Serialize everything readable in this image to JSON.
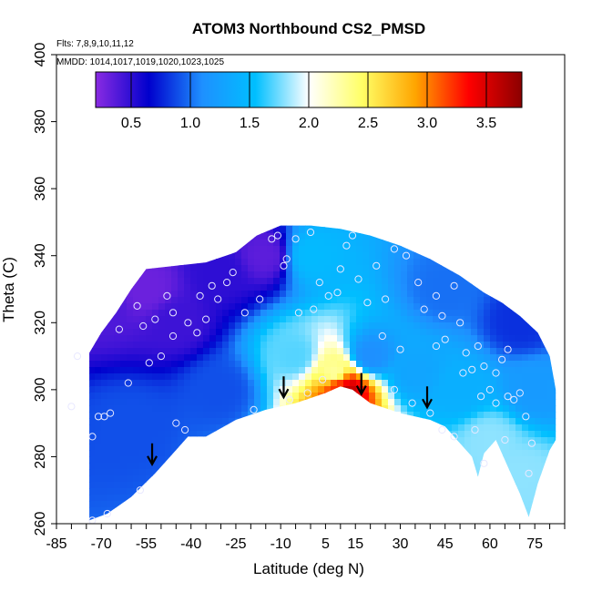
{
  "chart_data": {
    "type": "heatmap",
    "title": "ATOM3 Northbound CS2_PMSD",
    "annotations": {
      "flights": "Flts: 7,8,9,10,11,12",
      "dates": "MMDD: 1014,1017,1019,1020,1023,1025"
    },
    "xlabel": "Latitude (deg N)",
    "ylabel": "Theta (C)",
    "xlim": [
      -85,
      85
    ],
    "ylim": [
      260,
      400
    ],
    "xticks": [
      -85,
      -70,
      -55,
      -40,
      -25,
      -10,
      5,
      15,
      30,
      45,
      60,
      75
    ],
    "xtick_labels": [
      "-85",
      "-70",
      "-55",
      "-40",
      "-25",
      "-10",
      "5",
      "15",
      "30",
      "45",
      "60",
      "75"
    ],
    "yticks": [
      260,
      280,
      300,
      320,
      340,
      360,
      380,
      400
    ],
    "ytick_labels": [
      "260",
      "280",
      "300",
      "320",
      "340",
      "360",
      "380",
      "400"
    ],
    "colorbar": {
      "range": [
        0.2,
        3.8
      ],
      "ticks": [
        0.5,
        1.0,
        1.5,
        2.0,
        2.5,
        3.0,
        3.5
      ],
      "tick_labels": [
        "0.5",
        "1.0",
        "1.5",
        "2.0",
        "2.5",
        "3.0",
        "3.5"
      ],
      "colors": [
        "#8a2be2",
        "#0000cd",
        "#1e90ff",
        "#00bfff",
        "#ffffff",
        "#ffff66",
        "#ffa500",
        "#ff0000",
        "#8b0000"
      ]
    },
    "domain_top": [
      [
        -74,
        311
      ],
      [
        -70,
        317
      ],
      [
        -65,
        323
      ],
      [
        -60,
        330
      ],
      [
        -55,
        336
      ],
      [
        -45,
        337
      ],
      [
        -35,
        338
      ],
      [
        -25,
        341
      ],
      [
        -18,
        346
      ],
      [
        -10,
        349
      ],
      [
        0,
        349
      ],
      [
        10,
        348
      ],
      [
        20,
        346
      ],
      [
        30,
        343
      ],
      [
        40,
        339
      ],
      [
        50,
        334
      ],
      [
        58,
        329
      ],
      [
        64,
        326
      ],
      [
        70,
        322
      ],
      [
        76,
        317
      ],
      [
        80,
        310
      ],
      [
        82,
        300
      ],
      [
        82,
        285
      ]
    ],
    "domain_bottom": [
      [
        -74,
        261
      ],
      [
        -68,
        263
      ],
      [
        -60,
        268
      ],
      [
        -52,
        275
      ],
      [
        -45,
        282
      ],
      [
        -41,
        286
      ],
      [
        -35,
        286
      ],
      [
        -25,
        291
      ],
      [
        -15,
        294
      ],
      [
        -5,
        296
      ],
      [
        5,
        299
      ],
      [
        10,
        301
      ],
      [
        14,
        300
      ],
      [
        20,
        296
      ],
      [
        30,
        293
      ],
      [
        40,
        291
      ],
      [
        45,
        289
      ],
      [
        50,
        284
      ],
      [
        54,
        280
      ],
      [
        56,
        274
      ],
      [
        58,
        281
      ],
      [
        62,
        285
      ],
      [
        66,
        277
      ],
      [
        70,
        269
      ],
      [
        73,
        262
      ],
      [
        76,
        272
      ],
      [
        80,
        282
      ],
      [
        82,
        285
      ]
    ],
    "field_peaks": [
      {
        "lat": -70,
        "theta": 325,
        "value": 0.4
      },
      {
        "lat": -55,
        "theta": 330,
        "value": 0.3
      },
      {
        "lat": -45,
        "theta": 320,
        "value": 0.45
      },
      {
        "lat": -30,
        "theta": 335,
        "value": 0.5
      },
      {
        "lat": -15,
        "theta": 340,
        "value": 0.35
      },
      {
        "lat": -60,
        "theta": 290,
        "value": 0.9
      },
      {
        "lat": -30,
        "theta": 300,
        "value": 0.9
      },
      {
        "lat": -5,
        "theta": 310,
        "value": 1.7
      },
      {
        "lat": 0,
        "theta": 340,
        "value": 1.5
      },
      {
        "lat": 8,
        "theta": 305,
        "value": 2.3
      },
      {
        "lat": 10,
        "theta": 301,
        "value": 3.2
      },
      {
        "lat": 12,
        "theta": 300,
        "value": 3.6
      },
      {
        "lat": 20,
        "theta": 310,
        "value": 1.1
      },
      {
        "lat": 35,
        "theta": 305,
        "value": 1.3
      },
      {
        "lat": 50,
        "theta": 300,
        "value": 1.4
      },
      {
        "lat": 60,
        "theta": 285,
        "value": 1.8
      },
      {
        "lat": 70,
        "theta": 275,
        "value": 1.8
      },
      {
        "lat": 75,
        "theta": 300,
        "value": 1.2
      },
      {
        "lat": 70,
        "theta": 320,
        "value": 0.8
      },
      {
        "lat": 45,
        "theta": 330,
        "value": 1.0
      }
    ],
    "sample_points": [
      [
        -73,
        261
      ],
      [
        -68,
        263
      ],
      [
        -57,
        270
      ],
      [
        -71,
        292
      ],
      [
        -69,
        292
      ],
      [
        -67,
        293
      ],
      [
        -73,
        286
      ],
      [
        -80,
        295
      ],
      [
        -61,
        302
      ],
      [
        -54,
        308
      ],
      [
        -50,
        310
      ],
      [
        -46,
        316
      ],
      [
        -41,
        320
      ],
      [
        -38,
        317
      ],
      [
        -35,
        321
      ],
      [
        -31,
        327
      ],
      [
        -28,
        332
      ],
      [
        -26,
        335
      ],
      [
        -22,
        323
      ],
      [
        -17,
        327
      ],
      [
        -13,
        345
      ],
      [
        -11,
        346
      ],
      [
        -9,
        337
      ],
      [
        -8,
        339
      ],
      [
        -5,
        345
      ],
      [
        0,
        347
      ],
      [
        3,
        332
      ],
      [
        6,
        328
      ],
      [
        9,
        329
      ],
      [
        10,
        336
      ],
      [
        12,
        343
      ],
      [
        14,
        346
      ],
      [
        16,
        333
      ],
      [
        19,
        326
      ],
      [
        22,
        337
      ],
      [
        25,
        327
      ],
      [
        28,
        342
      ],
      [
        32,
        340
      ],
      [
        36,
        332
      ],
      [
        38,
        324
      ],
      [
        42,
        328
      ],
      [
        44,
        322
      ],
      [
        48,
        331
      ],
      [
        50,
        320
      ],
      [
        52,
        311
      ],
      [
        54,
        306
      ],
      [
        56,
        313
      ],
      [
        58,
        307
      ],
      [
        60,
        300
      ],
      [
        62,
        305
      ],
      [
        64,
        309
      ],
      [
        66,
        312
      ],
      [
        68,
        297
      ],
      [
        70,
        299
      ],
      [
        72,
        292
      ],
      [
        74,
        284
      ],
      [
        73,
        275
      ],
      [
        65,
        285
      ],
      [
        58,
        278
      ],
      [
        55,
        288
      ],
      [
        48,
        286
      ],
      [
        44,
        288
      ],
      [
        40,
        293
      ],
      [
        34,
        296
      ],
      [
        28,
        300
      ],
      [
        -19,
        294
      ],
      [
        -42,
        288
      ],
      [
        -45,
        290
      ],
      [
        -58,
        325
      ],
      [
        -56,
        319
      ],
      [
        -52,
        321
      ],
      [
        -46,
        323
      ],
      [
        -64,
        318
      ],
      [
        -37,
        328
      ],
      [
        -33,
        331
      ],
      [
        -4,
        323
      ],
      [
        1,
        324
      ],
      [
        -7,
        297
      ],
      [
        -1,
        299
      ],
      [
        4,
        303
      ],
      [
        -78,
        310
      ],
      [
        -48,
        328
      ],
      [
        66,
        298
      ],
      [
        62,
        296
      ],
      [
        57,
        298
      ],
      [
        51,
        305
      ],
      [
        45,
        315
      ],
      [
        42,
        313
      ],
      [
        30,
        312
      ],
      [
        24,
        316
      ]
    ],
    "arrows": [
      {
        "lat": -53,
        "theta": 278
      },
      {
        "lat": -9,
        "theta": 298
      },
      {
        "lat": 17,
        "theta": 299
      },
      {
        "lat": 39,
        "theta": 295
      }
    ]
  }
}
